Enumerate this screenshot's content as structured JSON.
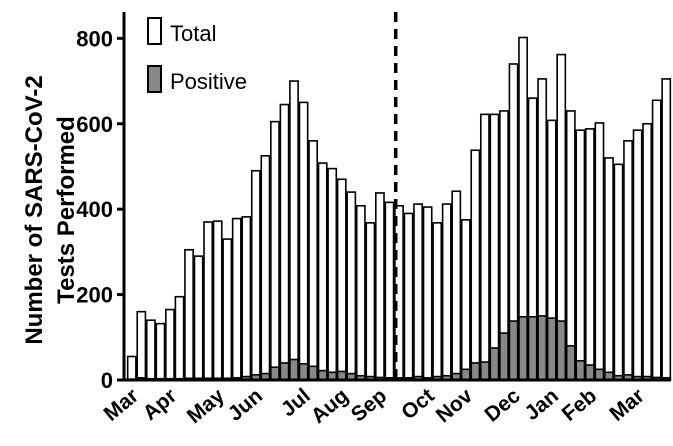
{
  "chart_data": {
    "type": "bar",
    "ylabel_line1": "Number of SARS-CoV-2",
    "ylabel_line2": "Tests Performed",
    "ylim": [
      0,
      850
    ],
    "yticks": [
      0,
      200,
      400,
      600,
      800
    ],
    "legend_position": "top-left",
    "grid": false,
    "month_labels": [
      "Mar",
      "Apr",
      "May",
      "Jun",
      "Jul",
      "Aug",
      "Sep",
      "Oct",
      "Nov",
      "Dec",
      "Jan",
      "Feb",
      "Mar"
    ],
    "month_label_week_index": [
      0,
      4,
      9,
      13,
      18,
      22,
      26,
      31,
      35,
      40,
      44,
      48,
      53
    ],
    "dashed_line_after_week": 28,
    "series": [
      {
        "name": "Total",
        "color": "#ffffff",
        "values": [
          55,
          160,
          140,
          132,
          165,
          195,
          305,
          290,
          370,
          372,
          330,
          378,
          382,
          490,
          525,
          605,
          645,
          700,
          650,
          560,
          508,
          495,
          470,
          440,
          408,
          368,
          438,
          416,
          408,
          390,
          412,
          405,
          368,
          412,
          442,
          375,
          538,
          622,
          622,
          630,
          740,
          802,
          660,
          705,
          608,
          762,
          630,
          585,
          588,
          602,
          520,
          505,
          560,
          585,
          600,
          655,
          705
        ]
      },
      {
        "name": "Positive",
        "color": "#888888",
        "values": [
          2,
          5,
          3,
          3,
          3,
          3,
          4,
          4,
          4,
          4,
          4,
          5,
          8,
          12,
          15,
          30,
          40,
          48,
          38,
          32,
          22,
          18,
          20,
          15,
          10,
          8,
          6,
          5,
          5,
          5,
          8,
          5,
          8,
          10,
          15,
          25,
          40,
          42,
          75,
          110,
          138,
          148,
          148,
          150,
          145,
          138,
          80,
          45,
          35,
          25,
          18,
          10,
          12,
          8,
          8,
          6,
          5
        ]
      }
    ]
  }
}
